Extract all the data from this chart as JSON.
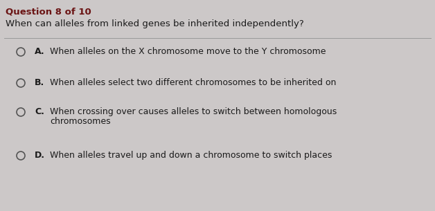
{
  "background_color": "#ccc8c8",
  "question_label": "Question 8 of 10",
  "question_text": "When can alleles from linked genes be inherited independently?",
  "options": [
    {
      "letter": "A.",
      "text": "When alleles on the X chromosome move to the Y chromosome",
      "text_line2": null
    },
    {
      "letter": "B.",
      "text": "When alleles select two different chromosomes to be inherited on",
      "text_line2": null
    },
    {
      "letter": "C.",
      "text": "When crossing over causes alleles to switch between homologous",
      "text_line2": "chromosomes"
    },
    {
      "letter": "D.",
      "text": "When alleles travel up and down a chromosome to switch places",
      "text_line2": null
    }
  ],
  "question_label_color": "#6b1515",
  "question_label_fontsize": 9.5,
  "question_text_color": "#1a1a1a",
  "question_text_fontsize": 9.5,
  "option_letter_color": "#1a1a1a",
  "option_text_color": "#1a1a1a",
  "option_fontsize": 9.0,
  "circle_edge_color": "#555555",
  "divider_color": "#999999",
  "fig_width": 6.28,
  "fig_height": 3.05,
  "dpi": 100
}
